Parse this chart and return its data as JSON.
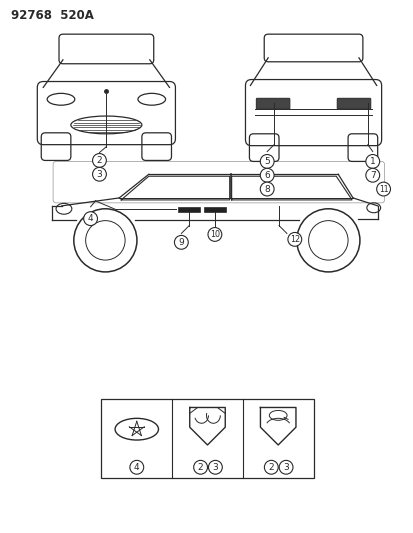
{
  "title_text": "92768  520A",
  "bg_color": "#ffffff",
  "line_color": "#2a2a2a",
  "text_color": "#2a2a2a",
  "fig_width": 4.14,
  "fig_height": 5.33,
  "dpi": 100
}
